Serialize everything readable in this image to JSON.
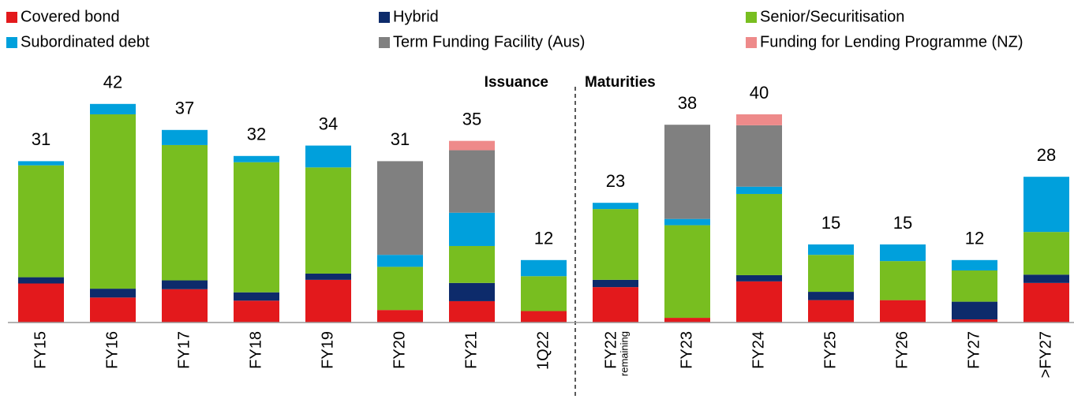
{
  "chart_data": {
    "type": "stacked_bar",
    "categories": [
      "FY15",
      "FY16",
      "FY17",
      "FY18",
      "FY19",
      "FY20",
      "FY21",
      "1Q22",
      "FY22",
      "FY23",
      "FY24",
      "FY25",
      "FY26",
      "FY27",
      ">FY27"
    ],
    "category_notes": [
      null,
      null,
      null,
      null,
      null,
      null,
      null,
      null,
      "remaining",
      null,
      null,
      null,
      null,
      null,
      null
    ],
    "totals": [
      31,
      42,
      37,
      32,
      34,
      31,
      35,
      12,
      23,
      38,
      40,
      15,
      15,
      12,
      28
    ],
    "annotations": [
      "Issuance",
      "Maturities"
    ],
    "series": [
      {
        "name": "Covered bond",
        "color": "#e3191c",
        "values": [
          7.5,
          4.8,
          6.4,
          4.2,
          8.2,
          2.4,
          4.1,
          2.2,
          6.8,
          0.9,
          7.9,
          4.3,
          4.3,
          0.6,
          7.6
        ]
      },
      {
        "name": "Hybrid",
        "color": "#0d2b6b",
        "values": [
          1.2,
          1.7,
          1.7,
          1.6,
          1.2,
          0,
          3.5,
          0,
          1.4,
          0,
          1.2,
          1.6,
          0,
          3.4,
          1.6
        ]
      },
      {
        "name": "Senior/Securitisation",
        "color": "#78be20",
        "values": [
          21.5,
          33.5,
          26,
          25,
          20.4,
          8.3,
          7.1,
          6.7,
          13.6,
          17.8,
          15.6,
          7.1,
          7.5,
          6,
          8.2
        ]
      },
      {
        "name": "Subordinated debt",
        "color": "#00a0dc",
        "values": [
          0.8,
          2,
          2.9,
          1.2,
          4.2,
          2.3,
          6.4,
          3.1,
          1.2,
          1.2,
          1.4,
          2,
          3.2,
          2,
          10.6
        ]
      },
      {
        "name": "Term Funding Facility (Aus)",
        "color": "#808080",
        "values": [
          0,
          0,
          0,
          0,
          0,
          18,
          12,
          0,
          0,
          18.1,
          11.8,
          0,
          0,
          0,
          0
        ]
      },
      {
        "name": "Funding for Lending Programme (NZ)",
        "color": "#ee8a8a",
        "values": [
          0,
          0,
          0,
          0,
          0,
          0,
          1.8,
          0,
          0,
          0,
          2.1,
          0,
          0,
          0,
          0
        ]
      }
    ],
    "legend": "top"
  }
}
